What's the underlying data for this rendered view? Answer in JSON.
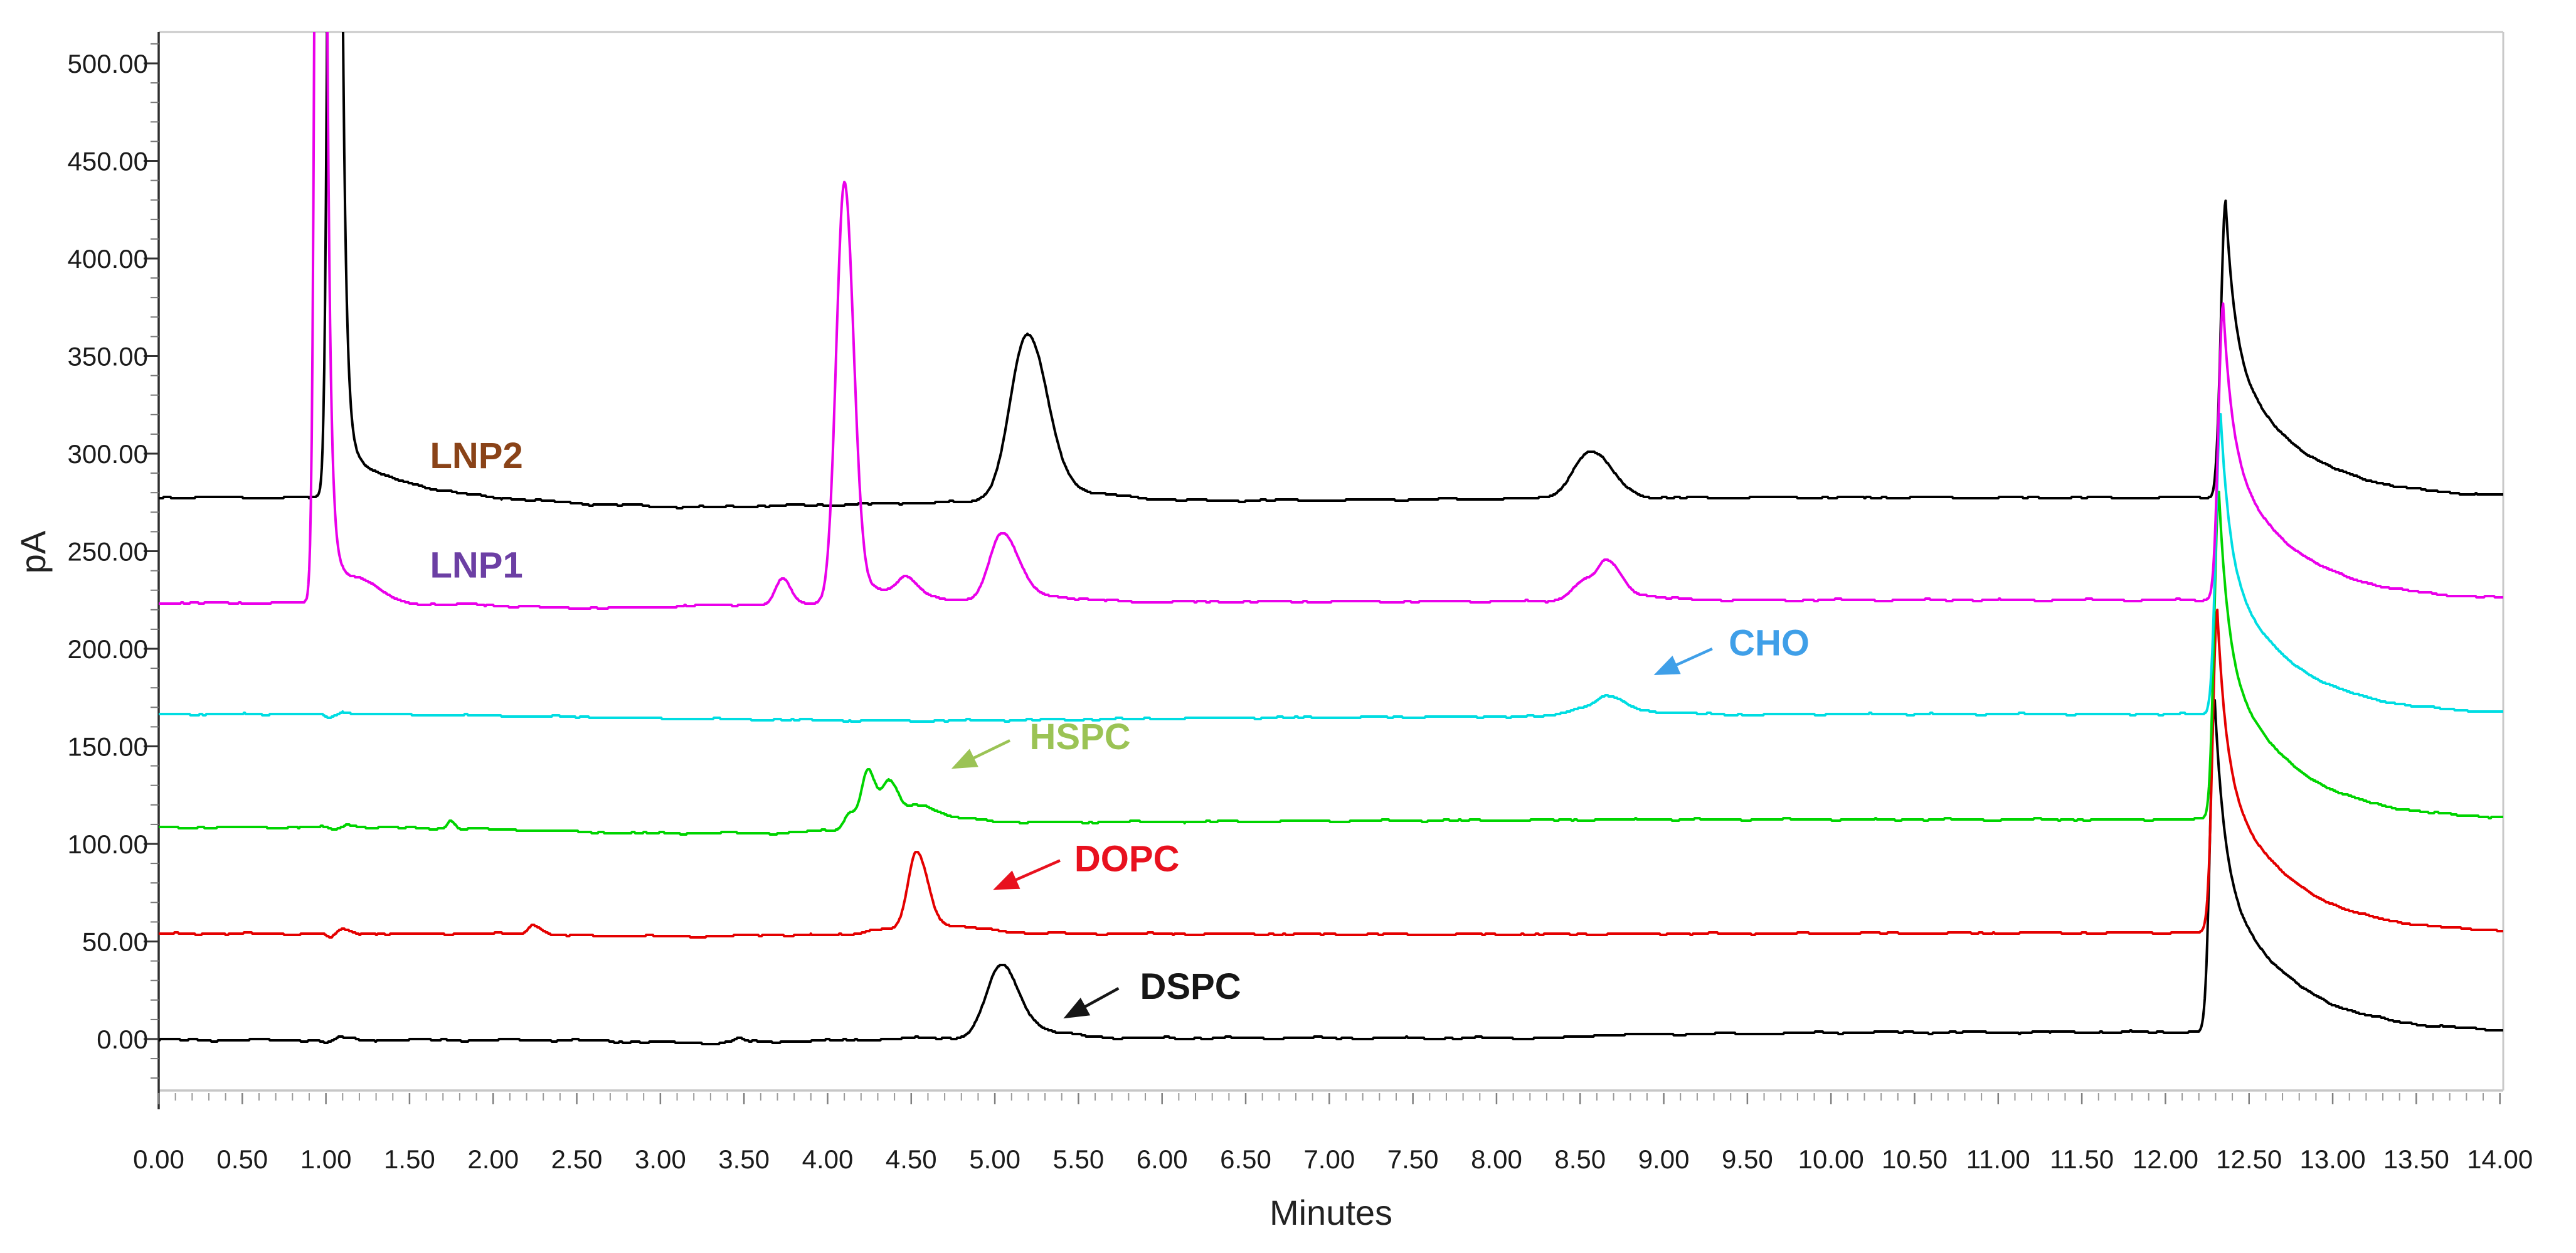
{
  "figure": {
    "background": "#ffffff",
    "frame_color": "#c9c9c9",
    "y_axis_color": "#2f2f2f",
    "x_axis_color": "#c7c7c7"
  },
  "chart_data": {
    "type": "line",
    "title": "",
    "xlabel": "Minutes",
    "ylabel": "pA",
    "x_range": [
      0,
      14.02
    ],
    "y_range": [
      -26,
      516
    ],
    "grid": false,
    "legend": "none (series identified by in-plot colored annotations)",
    "x_axis": {
      "title": "Minutes",
      "major_step": 0.5,
      "minor_step": 0.1,
      "tick_labels": [
        "0.00",
        "0.50",
        "1.00",
        "1.50",
        "2.00",
        "2.50",
        "3.00",
        "3.50",
        "4.00",
        "4.50",
        "5.00",
        "5.50",
        "6.00",
        "6.50",
        "7.00",
        "7.50",
        "8.00",
        "8.50",
        "9.00",
        "9.50",
        "10.00",
        "10.50",
        "11.00",
        "11.50",
        "12.00",
        "12.50",
        "13.00",
        "13.50",
        "14.00"
      ]
    },
    "y_axis": {
      "title": "pA",
      "major_step": 50,
      "minor_step": 10,
      "minor_from": -20,
      "minor_to": 510,
      "tick_labels": [
        "0.00",
        "50.00",
        "100.00",
        "150.00",
        "200.00",
        "250.00",
        "300.00",
        "350.00",
        "400.00",
        "450.00",
        "500.00"
      ]
    },
    "series": [
      {
        "name": "DSPC",
        "color": "#000000",
        "baseline_pA": 0,
        "noise": 0.7,
        "base": [
          [
            0,
            -0.5
          ],
          [
            0.95,
            -0.5
          ],
          [
            1.0,
            -2.5
          ],
          [
            1.08,
            1
          ],
          [
            1.2,
            -0.5
          ],
          [
            2.4,
            -0.5
          ],
          [
            2.9,
            -1.5
          ],
          [
            3.3,
            -2
          ],
          [
            3.9,
            -1
          ],
          [
            4.6,
            0.5
          ],
          [
            8.4,
            0.5
          ],
          [
            8.6,
            2
          ],
          [
            10.3,
            3.5
          ],
          [
            14.02,
            3.5
          ]
        ],
        "peaks_gauss": [
          [
            3.47,
            2,
            0.03,
            0.035
          ],
          [
            5.03,
            34,
            0.085,
            0.105
          ],
          [
            5.12,
            5,
            0.09,
            0.25
          ]
        ],
        "peaks_exp": [
          [
            12.295,
            170,
            0.028,
            0.055,
            0.5,
            0.4,
            0.5
          ]
        ],
        "key_peaks": [
          {
            "t_min": 5.03,
            "apex_pA": 38
          },
          {
            "t_min": 12.3,
            "apex_pA": 170
          }
        ]
      },
      {
        "name": "DOPC",
        "color": "#e40000",
        "baseline_pA": 54,
        "noise": 0.55,
        "base": [
          [
            0,
            54
          ],
          [
            0.98,
            54
          ],
          [
            1.03,
            51.8
          ],
          [
            1.1,
            56.5
          ],
          [
            1.2,
            54
          ],
          [
            2.1,
            54
          ],
          [
            2.45,
            53
          ],
          [
            3.35,
            52.5
          ],
          [
            3.55,
            53.3
          ],
          [
            4.05,
            53.3
          ],
          [
            5.4,
            54
          ],
          [
            8.0,
            53.6
          ],
          [
            9.0,
            54
          ],
          [
            12,
            54.5
          ],
          [
            14.02,
            54.5
          ]
        ],
        "peaks_gauss": [
          [
            2.24,
            5,
            0.028,
            0.05
          ],
          [
            4.33,
            3,
            0.1,
            0.1
          ],
          [
            4.53,
            39,
            0.05,
            0.065
          ],
          [
            4.61,
            5,
            0.08,
            0.28
          ]
        ],
        "peaks_exp": [
          [
            12.31,
            165,
            0.028,
            0.055,
            0.5,
            0.4,
            0.5
          ]
        ],
        "key_peaks": [
          {
            "t_min": 4.53,
            "apex_pA": 97
          },
          {
            "t_min": 12.31,
            "apex_pA": 219
          }
        ]
      },
      {
        "name": "HSPC",
        "color": "#00d400",
        "baseline_pA": 108,
        "noise": 0.55,
        "base": [
          [
            0,
            108.5
          ],
          [
            1.0,
            108.5
          ],
          [
            1.05,
            107
          ],
          [
            1.12,
            109.8
          ],
          [
            1.25,
            108.5
          ],
          [
            2.0,
            107.5
          ],
          [
            2.8,
            105.5
          ],
          [
            3.7,
            105.5
          ],
          [
            4.05,
            107
          ],
          [
            4.85,
            111
          ],
          [
            6.5,
            111.5
          ],
          [
            9.0,
            112.5
          ],
          [
            14.02,
            112.5
          ]
        ],
        "peaks_gauss": [
          [
            1.745,
            4,
            0.02,
            0.025
          ],
          [
            4.13,
            8,
            0.032,
            0.035
          ],
          [
            4.24,
            30,
            0.04,
            0.047
          ],
          [
            4.37,
            23,
            0.046,
            0.058
          ],
          [
            4.53,
            9,
            0.06,
            0.1
          ],
          [
            4.65,
            3,
            0.08,
            0.2
          ]
        ],
        "peaks_exp": [
          [
            12.32,
            168,
            0.028,
            0.055,
            0.5,
            0.4,
            0.5
          ]
        ],
        "key_peaks": [
          {
            "t_min": 4.24,
            "apex_pA": 138
          },
          {
            "t_min": 4.37,
            "apex_pA": 131
          },
          {
            "t_min": 12.32,
            "apex_pA": 279
          }
        ]
      },
      {
        "name": "CHO",
        "color": "#00dde2",
        "baseline_pA": 166,
        "noise": 0.5,
        "base": [
          [
            0,
            166.5
          ],
          [
            0.98,
            166.5
          ],
          [
            1.02,
            164.3
          ],
          [
            1.1,
            167.6
          ],
          [
            1.22,
            166.5
          ],
          [
            2.2,
            165.5
          ],
          [
            3.3,
            164
          ],
          [
            4.4,
            163
          ],
          [
            5.2,
            163.5
          ],
          [
            6.3,
            164.5
          ],
          [
            7.4,
            165
          ],
          [
            8.2,
            165.3
          ],
          [
            9.0,
            166
          ],
          [
            10,
            166.5
          ],
          [
            14.02,
            166.5
          ]
        ],
        "peaks_gauss": [
          [
            8.5,
            4,
            0.08,
            0.08
          ],
          [
            8.655,
            9,
            0.06,
            0.1
          ],
          [
            8.82,
            2,
            0.1,
            0.25
          ]
        ],
        "peaks_exp": [
          [
            12.33,
            154,
            0.028,
            0.055,
            0.5,
            0.4,
            0.5
          ]
        ],
        "key_peaks": [
          {
            "t_min": 8.66,
            "apex_pA": 179
          },
          {
            "t_min": 12.33,
            "apex_pA": 320
          }
        ]
      },
      {
        "name": "LNP2",
        "color": "#000000",
        "baseline_pA": 278,
        "noise": 0.6,
        "base": [
          [
            0,
            277.5
          ],
          [
            0.92,
            277.5
          ],
          [
            1.5,
            280
          ],
          [
            2.0,
            277
          ],
          [
            2.6,
            274
          ],
          [
            3.2,
            272.5
          ],
          [
            3.9,
            273.5
          ],
          [
            4.6,
            275
          ],
          [
            5.6,
            275.5
          ],
          [
            6.6,
            276
          ],
          [
            7.6,
            276.5
          ],
          [
            8.2,
            277
          ],
          [
            9.4,
            277.5
          ],
          [
            14.02,
            277.5
          ]
        ],
        "peaks_gauss": [
          [
            5.19,
            82,
            0.1,
            0.12
          ],
          [
            5.31,
            6,
            0.12,
            0.35
          ],
          [
            8.56,
            24,
            0.1,
            0.13
          ]
        ],
        "peaks_exp": [
          [
            1.06,
            1500,
            0.028,
            0.022,
            0.98,
            0.25,
            0.02
          ],
          [
            12.36,
            152,
            0.028,
            0.055,
            0.5,
            0.4,
            0.5
          ]
        ],
        "key_peaks": [
          {
            "t_min": 1.06,
            "apex_pA": "off-scale (clipped > 516)"
          },
          {
            "t_min": 5.19,
            "apex_pA": 362
          },
          {
            "t_min": 8.56,
            "apex_pA": 301
          },
          {
            "t_min": 12.36,
            "apex_pA": 430
          }
        ]
      },
      {
        "name": "LNP1",
        "color": "#ea00ea",
        "baseline_pA": 225,
        "noise": 0.55,
        "base": [
          [
            0,
            223.5
          ],
          [
            0.88,
            223.5
          ],
          [
            1.45,
            221
          ],
          [
            1.9,
            222.5
          ],
          [
            2.15,
            221.5
          ],
          [
            2.7,
            220.8
          ],
          [
            3.4,
            222.5
          ],
          [
            4.7,
            223.5
          ],
          [
            5.8,
            224
          ],
          [
            8.2,
            224.3
          ],
          [
            9.5,
            225
          ],
          [
            14.02,
            225
          ]
        ],
        "peaks_gauss": [
          [
            1.22,
            5,
            0.06,
            0.12
          ],
          [
            3.73,
            13,
            0.04,
            0.05
          ],
          [
            4.1,
            210,
            0.048,
            0.055
          ],
          [
            4.18,
            8,
            0.1,
            0.3
          ],
          [
            4.47,
            9,
            0.05,
            0.07
          ],
          [
            5.04,
            33,
            0.075,
            0.095
          ],
          [
            5.13,
            4,
            0.1,
            0.3
          ],
          [
            8.52,
            10,
            0.07,
            0.07
          ],
          [
            8.66,
            18,
            0.055,
            0.08
          ],
          [
            8.77,
            3,
            0.1,
            0.2
          ]
        ],
        "peaks_exp": [
          [
            0.975,
            1500,
            0.025,
            0.02,
            0.98,
            0.2,
            0.02
          ],
          [
            12.345,
            152,
            0.028,
            0.055,
            0.5,
            0.4,
            0.5
          ]
        ],
        "key_peaks": [
          {
            "t_min": 0.98,
            "apex_pA": "off-scale (clipped > 516)"
          },
          {
            "t_min": 3.73,
            "apex_pA": 237
          },
          {
            "t_min": 4.1,
            "apex_pA": 437
          },
          {
            "t_min": 5.04,
            "apex_pA": 262
          },
          {
            "t_min": 8.66,
            "apex_pA": 249
          },
          {
            "t_min": 12.35,
            "apex_pA": 380
          }
        ]
      }
    ],
    "annotations": [
      {
        "id": "LNP2",
        "text": "LNP2",
        "color": "#8a4318",
        "t": 1.9,
        "pA": 299,
        "arrow": null
      },
      {
        "id": "LNP1",
        "text": "LNP1",
        "color": "#6c3fa4",
        "t": 1.9,
        "pA": 243,
        "arrow": null
      },
      {
        "id": "CHO",
        "text": "CHO",
        "color": "#3f9fe8",
        "t": 9.63,
        "pA": 203,
        "arrow": {
          "from": [
            9.29,
            200
          ],
          "to": [
            8.94,
            186.5
          ]
        }
      },
      {
        "id": "HSPC",
        "text": "HSPC",
        "color": "#9bc355",
        "t": 5.51,
        "pA": 155,
        "arrow": {
          "from": [
            5.09,
            153
          ],
          "to": [
            4.74,
            138.5
          ]
        }
      },
      {
        "id": "DOPC",
        "text": "DOPC",
        "color": "#e8111e",
        "t": 5.79,
        "pA": 92.5,
        "arrow": {
          "from": [
            5.39,
            91.5
          ],
          "to": [
            4.99,
            76.5
          ]
        }
      },
      {
        "id": "DSPC",
        "text": "DSPC",
        "color": "#161616",
        "t": 6.17,
        "pA": 27,
        "arrow": {
          "from": [
            5.74,
            26
          ],
          "to": [
            5.41,
            10.5
          ]
        }
      }
    ]
  }
}
